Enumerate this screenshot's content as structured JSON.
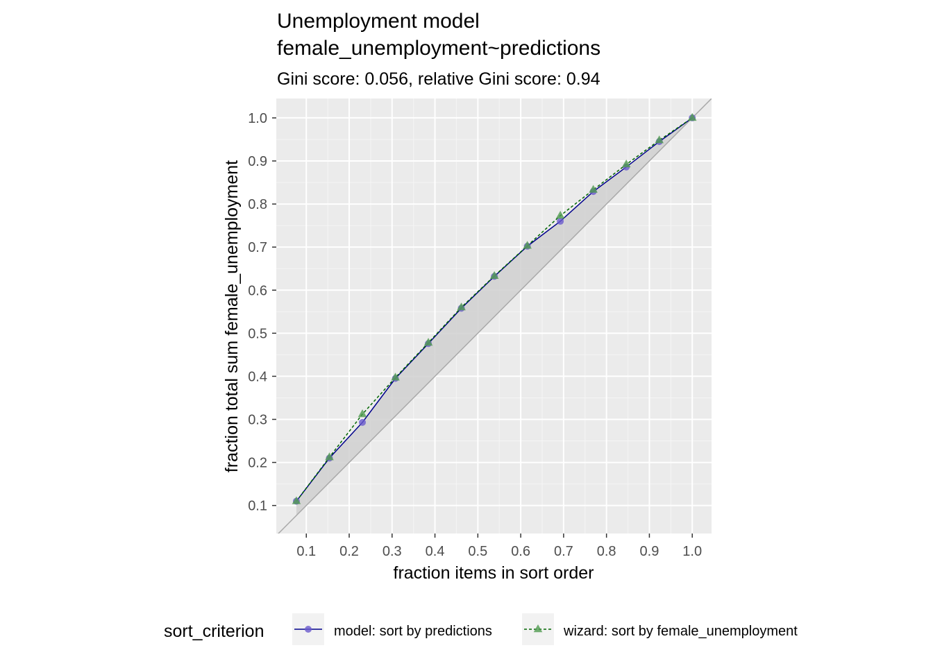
{
  "chart_data": {
    "type": "line",
    "title_lines": [
      "Unemployment model",
      "female_unemployment~predictions"
    ],
    "subtitle": "Gini score: 0.056, relative Gini score: 0.94",
    "xlabel": "fraction items in sort order",
    "ylabel": "fraction total sum female_unemployment",
    "xlim": [
      0.03,
      1.045
    ],
    "ylim": [
      0.035,
      1.045
    ],
    "x_ticks": [
      "0.1",
      "0.2",
      "0.3",
      "0.4",
      "0.5",
      "0.6",
      "0.7",
      "0.8",
      "0.9",
      "1.0"
    ],
    "y_ticks": [
      "0.1",
      "0.2",
      "0.3",
      "0.4",
      "0.5",
      "0.6",
      "0.7",
      "0.8",
      "0.9",
      "1.0"
    ],
    "grid": true,
    "reference_line": "diagonal y = x",
    "x": [
      0.0769,
      0.1538,
      0.2308,
      0.3077,
      0.3846,
      0.4615,
      0.5385,
      0.6154,
      0.6923,
      0.7692,
      0.8462,
      0.9231,
      1.0
    ],
    "series": [
      {
        "name": "model: sort by predictions",
        "values": [
          0.11,
          0.21,
          0.293,
          0.395,
          0.476,
          0.558,
          0.632,
          0.702,
          0.76,
          0.829,
          0.886,
          0.945,
          1.0
        ],
        "color": "#00008b",
        "marker": "circle",
        "marker_color": "#6a5acd",
        "linestyle": "solid"
      },
      {
        "name": "wizard: sort by female_unemployment",
        "values": [
          0.11,
          0.212,
          0.312,
          0.397,
          0.478,
          0.56,
          0.633,
          0.703,
          0.773,
          0.833,
          0.892,
          0.948,
          1.0
        ],
        "color": "#006400",
        "marker": "triangle",
        "marker_color": "#4f9a4f",
        "linestyle": "dashed"
      }
    ],
    "legend": {
      "title": "sort_criterion",
      "position": "bottom"
    },
    "colors": {
      "panel": "#ebebeb",
      "grid_major": "#ffffff",
      "grid_minor": "#f5f5f5",
      "diagonal": "#a9a9a9",
      "area_fill": "#d0d0d0"
    }
  }
}
